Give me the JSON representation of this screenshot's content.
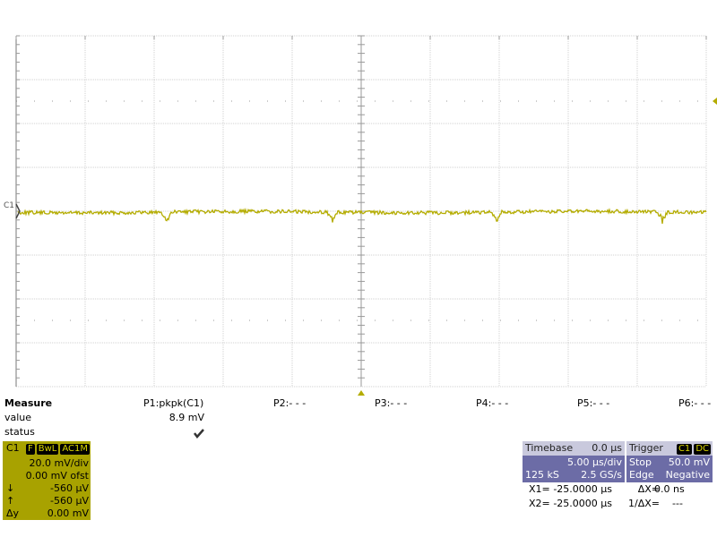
{
  "channel_marker": "C1",
  "measure": {
    "title": "Measure",
    "row_labels": [
      "value",
      "status"
    ],
    "params": [
      {
        "name": "P1:pkpk(C1)",
        "value": "8.9 mV"
      },
      {
        "name": "P2:- - -"
      },
      {
        "name": "P3:- - -"
      },
      {
        "name": "P4:- - -"
      },
      {
        "name": "P5:- - -"
      },
      {
        "name": "P6:- - -"
      }
    ]
  },
  "channel": {
    "name": "C1",
    "badges": [
      "F",
      "BwL",
      "AC1M"
    ],
    "scale": "20.0 mV/div",
    "offset": "0.00 mV ofst",
    "cursors": [
      {
        "symbol": "↓",
        "value": "-560 µV"
      },
      {
        "symbol": "↑",
        "value": "-560 µV"
      },
      {
        "symbol": "Δy",
        "value": "0.00 mV"
      }
    ]
  },
  "timebase": {
    "title": "Timebase",
    "delay": "0.0 µs",
    "scale": "5.00 µs/div",
    "samples": "125 kS",
    "rate": "2.5 GS/s"
  },
  "trigger": {
    "title": "Trigger",
    "source": "C1",
    "coupling": "DC",
    "mode": "Stop",
    "level": "50.0 mV",
    "type": "Edge",
    "slope": "Negative"
  },
  "cursors": [
    {
      "label": "X1=",
      "value": "-25.0000 µs",
      "delta_label": "ΔX=",
      "delta": "0.0 ns"
    },
    {
      "label": "X2=",
      "value": "-25.0000 µs",
      "delta_label": "1/ΔX=",
      "delta": "---"
    }
  ]
}
